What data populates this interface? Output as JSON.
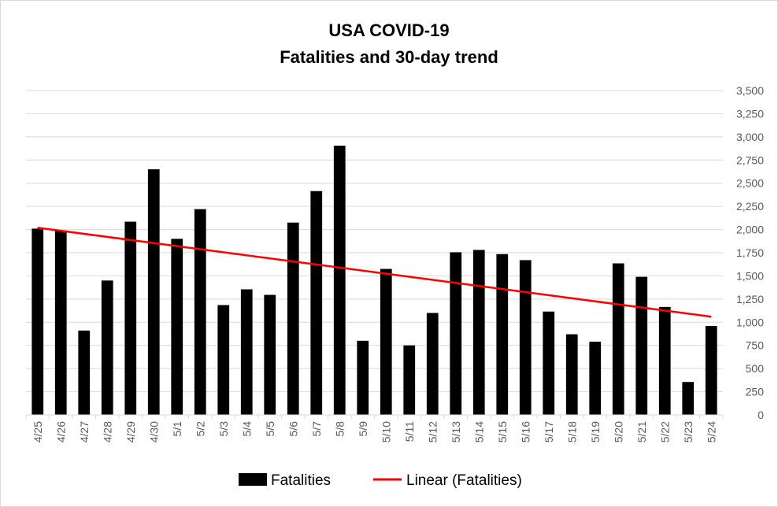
{
  "chart_data": {
    "type": "bar",
    "title_lines": [
      "USA COVID-19",
      "Fatalities and 30-day trend"
    ],
    "categories": [
      "4/25",
      "4/26",
      "4/27",
      "4/28",
      "4/29",
      "4/30",
      "5/1",
      "5/2",
      "5/3",
      "5/4",
      "5/5",
      "5/6",
      "5/7",
      "5/8",
      "5/9",
      "5/10",
      "5/11",
      "5/12",
      "5/13",
      "5/14",
      "5/15",
      "5/16",
      "5/17",
      "5/18",
      "5/19",
      "5/20",
      "5/21",
      "5/22",
      "5/23",
      "5/24"
    ],
    "series": [
      {
        "name": "Fatalities",
        "color": "#000000",
        "values": [
          2010,
          1990,
          910,
          1450,
          2085,
          2650,
          1900,
          2220,
          1185,
          1355,
          1295,
          2075,
          2415,
          2905,
          800,
          1575,
          750,
          1100,
          1755,
          1780,
          1735,
          1670,
          1115,
          870,
          790,
          1635,
          1490,
          1165,
          355,
          960
        ]
      }
    ],
    "trend": {
      "name": "Linear (Fatalities)",
      "color": "#ff0000",
      "start": 2020,
      "end": 1060
    },
    "y_axis": {
      "min": 0,
      "max": 3500,
      "step": 250,
      "tick_labels": [
        "0",
        "250",
        "500",
        "750",
        "1,000",
        "1,250",
        "1,500",
        "1,750",
        "2,000",
        "2,250",
        "2,500",
        "2,750",
        "3,000",
        "3,250",
        "3,500"
      ],
      "position": "right"
    },
    "grid": true,
    "legend_position": "bottom",
    "legend": [
      "Fatalities",
      "Linear (Fatalities)"
    ]
  }
}
